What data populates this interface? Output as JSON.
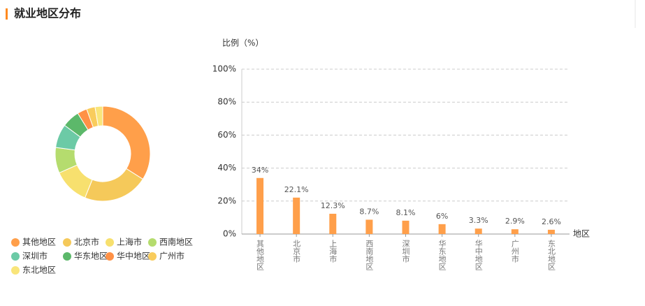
{
  "title": "就业地区分布",
  "chart_data": [
    {
      "type": "pie",
      "categories": [
        "其他地区",
        "北京市",
        "上海市",
        "西南地区",
        "深圳市",
        "华东地区",
        "华中地区",
        "广州市",
        "东北地区"
      ],
      "values": [
        34,
        22.1,
        12.3,
        8.7,
        8.1,
        6,
        3.3,
        2.9,
        2.6
      ],
      "colors": [
        "#ff9f4a",
        "#f5c95a",
        "#f7e06e",
        "#b5dc6e",
        "#6ccaa6",
        "#5cb86a",
        "#ff9146",
        "#f9cc5c",
        "#f9e57a"
      ]
    },
    {
      "type": "bar",
      "y_label": "比例（%）",
      "x_label": "地区",
      "categories": [
        "其他地区",
        "北京市",
        "上海市",
        "西南地区",
        "深圳市",
        "华东地区",
        "华中地区",
        "广州市",
        "东北地区"
      ],
      "values": [
        34,
        22.1,
        12.3,
        8.7,
        8.1,
        6,
        3.3,
        2.9,
        2.6
      ],
      "value_labels": [
        "34%",
        "22.1%",
        "12.3%",
        "8.7%",
        "8.1%",
        "6%",
        "3.3%",
        "2.9%",
        "2.6%"
      ],
      "color": "#ff9f4a",
      "ylim": [
        0,
        100
      ],
      "yticks": [
        {
          "value": 0,
          "label": "0%"
        },
        {
          "value": 20,
          "label": "20%"
        },
        {
          "value": 40,
          "label": "40%"
        },
        {
          "value": 60,
          "label": "60%"
        },
        {
          "value": 80,
          "label": "80%"
        },
        {
          "value": 100,
          "label": "100%"
        }
      ],
      "grid": true
    }
  ]
}
